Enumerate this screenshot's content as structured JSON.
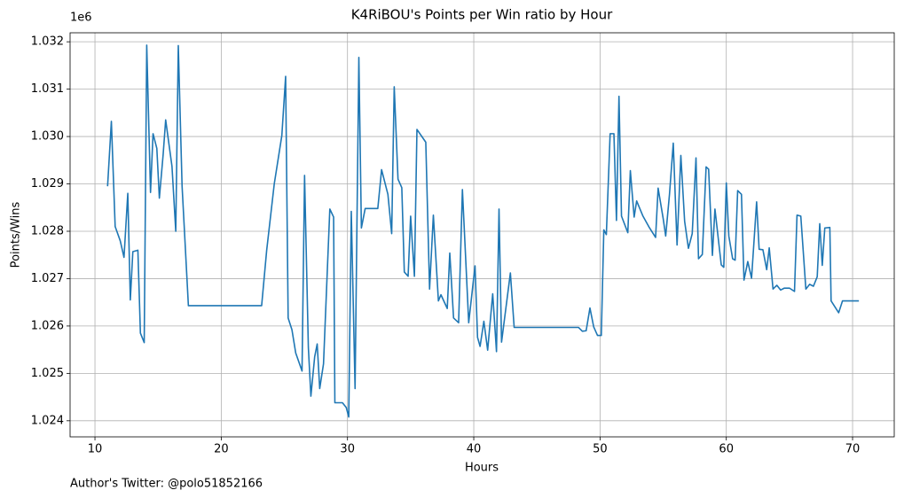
{
  "chart_data": {
    "type": "line",
    "title": "K4RiBOU's Points per Win ratio by Hour",
    "x_label": "Hours",
    "y_label": "Points/Wins",
    "y_offset_label": "1e6",
    "footnote": "Author's Twitter: @polo51852166",
    "color": "#1f77b4",
    "grid": true,
    "xlim": [
      8.03,
      73.3
    ],
    "ylim": [
      1.02366,
      1.03219
    ],
    "xticks": [
      10,
      20,
      30,
      40,
      50,
      60,
      70
    ],
    "yticks": [
      1.024,
      1.025,
      1.026,
      1.027,
      1.028,
      1.029,
      {
        "value": 1.03,
        "label": "1.030"
      },
      1.031,
      1.032
    ],
    "x": [
      11.0,
      11.3,
      11.6,
      12.0,
      12.3,
      12.6,
      12.8,
      13.0,
      13.4,
      13.6,
      13.9,
      14.1,
      14.4,
      14.6,
      14.9,
      15.1,
      15.4,
      15.6,
      16.1,
      16.4,
      16.6,
      16.9,
      17.4,
      23.2,
      23.6,
      24.2,
      24.8,
      25.1,
      25.3,
      25.6,
      25.9,
      26.4,
      26.6,
      26.9,
      27.1,
      27.4,
      27.6,
      27.8,
      28.1,
      28.6,
      28.9,
      29.0,
      29.6,
      29.9,
      30.1,
      30.3,
      30.6,
      30.9,
      31.1,
      31.4,
      32.4,
      32.7,
      33.2,
      33.5,
      33.7,
      34.0,
      34.3,
      34.5,
      34.8,
      35.0,
      35.3,
      35.5,
      36.2,
      36.5,
      36.8,
      37.2,
      37.4,
      37.9,
      38.1,
      38.4,
      38.8,
      39.1,
      39.6,
      40.1,
      40.3,
      40.5,
      40.8,
      41.1,
      41.5,
      41.8,
      42.0,
      42.2,
      42.9,
      43.2,
      48.3,
      48.6,
      48.9,
      49.2,
      49.5,
      49.8,
      50.1,
      50.3,
      50.5,
      50.8,
      51.1,
      51.3,
      51.5,
      51.7,
      52.2,
      52.4,
      52.7,
      52.9,
      53.4,
      53.9,
      54.4,
      54.6,
      55.0,
      55.2,
      55.5,
      55.8,
      56.1,
      56.4,
      56.7,
      57.0,
      57.3,
      57.6,
      57.8,
      58.1,
      58.4,
      58.6,
      58.9,
      59.1,
      59.4,
      59.6,
      59.8,
      60.0,
      60.2,
      60.5,
      60.7,
      60.9,
      61.2,
      61.4,
      61.7,
      62.0,
      62.4,
      62.6,
      62.9,
      63.2,
      63.4,
      63.7,
      64.0,
      64.3,
      64.6,
      65.0,
      65.4,
      65.6,
      65.9,
      66.3,
      66.6,
      66.9,
      67.2,
      67.4,
      67.6,
      67.8,
      68.2,
      68.3,
      68.9,
      69.2,
      70.5
    ],
    "values": [
      1.02895,
      1.03032,
      1.0281,
      1.0278,
      1.02745,
      1.0288,
      1.02655,
      1.02757,
      1.0276,
      1.02585,
      1.02565,
      1.03193,
      1.02882,
      1.03006,
      1.02975,
      1.0287,
      1.02962,
      1.03035,
      1.02937,
      1.028,
      1.03192,
      1.02895,
      1.02643,
      1.02643,
      1.0276,
      1.029,
      1.03002,
      1.03127,
      1.02617,
      1.02592,
      1.02543,
      1.02505,
      1.02918,
      1.02555,
      1.02452,
      1.02535,
      1.02562,
      1.02468,
      1.0252,
      1.02847,
      1.0283,
      1.02438,
      1.02438,
      1.02428,
      1.02408,
      1.02842,
      1.02468,
      1.03167,
      1.02807,
      1.02848,
      1.02848,
      1.0293,
      1.02878,
      1.02795,
      1.03105,
      1.0291,
      1.02892,
      1.02714,
      1.02705,
      1.02832,
      1.02705,
      1.03015,
      1.02988,
      1.02678,
      1.02834,
      1.02653,
      1.02666,
      1.02637,
      1.02754,
      1.02617,
      1.02607,
      1.02888,
      1.02607,
      1.02727,
      1.02576,
      1.02557,
      1.0261,
      1.02549,
      1.02668,
      1.02546,
      1.02847,
      1.02566,
      1.02712,
      1.02597,
      1.02597,
      1.02589,
      1.0259,
      1.02638,
      1.02598,
      1.0258,
      1.0258,
      1.02803,
      1.02793,
      1.03006,
      1.03006,
      1.02823,
      1.03085,
      1.02832,
      1.02797,
      1.02928,
      1.0283,
      1.02864,
      1.02832,
      1.02808,
      1.02787,
      1.02891,
      1.02827,
      1.0279,
      1.02878,
      1.02986,
      1.02771,
      1.0296,
      1.02821,
      1.02764,
      1.02795,
      1.02955,
      1.02742,
      1.02751,
      1.02936,
      1.02931,
      1.02749,
      1.02847,
      1.02776,
      1.02729,
      1.02724,
      1.02902,
      1.0279,
      1.02742,
      1.02739,
      1.02886,
      1.02878,
      1.02697,
      1.02736,
      1.02701,
      1.02862,
      1.02762,
      1.02761,
      1.02719,
      1.02765,
      1.02678,
      1.02686,
      1.02676,
      1.0268,
      1.0268,
      1.02673,
      1.02834,
      1.02832,
      1.02678,
      1.02688,
      1.02684,
      1.02704,
      1.02816,
      1.02728,
      1.02807,
      1.02808,
      1.02653,
      1.02628,
      1.02653,
      1.02653
    ]
  }
}
